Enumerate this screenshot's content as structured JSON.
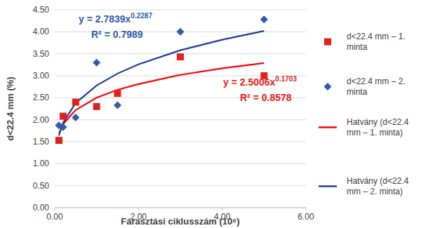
{
  "chart_data": {
    "type": "scatter",
    "x_label": "Fárasztási ciklusszám (10⁶)",
    "y_label": "d<22.4 mm (%)",
    "xlim": [
      0,
      6
    ],
    "xticks": [
      {
        "value": 0,
        "label": "0.00"
      },
      {
        "value": 2,
        "label": "2.00"
      },
      {
        "value": 4,
        "label": "4.00"
      },
      {
        "value": 6,
        "label": "6.00"
      }
    ],
    "ylim": [
      0,
      4.5
    ],
    "yticks": [
      {
        "value": 0,
        "label": "0.00"
      },
      {
        "value": 0.5,
        "label": "0.50"
      },
      {
        "value": 1,
        "label": "1.00"
      },
      {
        "value": 1.5,
        "label": "1.50"
      },
      {
        "value": 2,
        "label": "2.00"
      },
      {
        "value": 2.5,
        "label": "2.50"
      },
      {
        "value": 3,
        "label": "3.00"
      },
      {
        "value": 3.5,
        "label": "3.50"
      },
      {
        "value": 4,
        "label": "4.00"
      },
      {
        "value": 4.5,
        "label": "4.50"
      }
    ],
    "grid": true,
    "legend": "right",
    "series": [
      {
        "name": "d<22.4 mm – 1. minta",
        "type": "scatter",
        "marker": "square",
        "color": "#e3211c",
        "x": [
          0.1,
          0.2,
          0.5,
          1.0,
          1.5,
          3.0,
          5.0
        ],
        "values": [
          1.53,
          2.08,
          2.4,
          2.3,
          2.6,
          3.43,
          3.0
        ]
      },
      {
        "name": "d<22.4 mm – 2. minta",
        "type": "scatter",
        "marker": "diamond",
        "color": "#2f5ba8",
        "x": [
          0.1,
          0.2,
          0.5,
          1.0,
          1.5,
          3.0,
          5.0
        ],
        "values": [
          1.87,
          1.83,
          2.05,
          3.3,
          2.33,
          4.0,
          4.28
        ]
      },
      {
        "name": "Hatvány (d<22.4 mm – 1. minta)",
        "type": "line",
        "marker": "none",
        "line_style": "solid",
        "color": "#ff0000",
        "x": [
          0.1,
          0.2,
          0.5,
          1.0,
          1.5,
          2.0,
          3.0,
          4.0,
          5.0
        ],
        "values": [
          1.69,
          1.9,
          2.22,
          2.5,
          2.68,
          2.81,
          3.02,
          3.17,
          3.29
        ]
      },
      {
        "name": "Hatvány (d<22.4 mm – 2. minta)",
        "type": "line",
        "marker": "none",
        "line_style": "solid",
        "color": "#1f3c99",
        "x": [
          0.1,
          0.2,
          0.5,
          1.0,
          1.5,
          2.0,
          3.0,
          4.0,
          5.0
        ],
        "values": [
          1.64,
          1.93,
          2.38,
          2.78,
          3.05,
          3.26,
          3.58,
          3.82,
          4.02
        ]
      }
    ],
    "annotations": [
      {
        "text": "y = 2.7839x",
        "superscript": "0.2287",
        "color": "#2f5ba8"
      },
      {
        "text": "R² = 0.7989",
        "color": "#2f5ba8"
      },
      {
        "text": "y = 2.5006x",
        "superscript": "0.1703",
        "color": "#e3211c"
      },
      {
        "text": "R² = 0.8578",
        "color": "#e3211c"
      }
    ]
  }
}
